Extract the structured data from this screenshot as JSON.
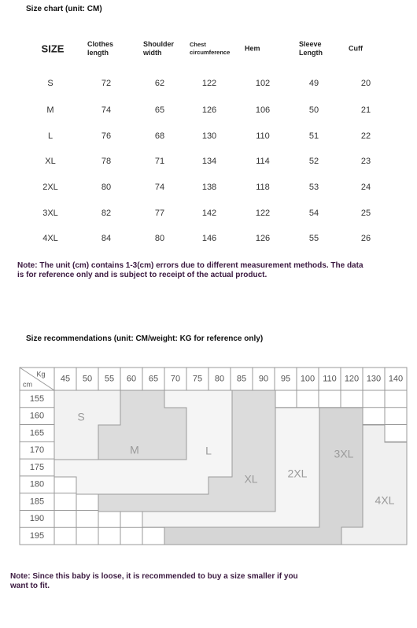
{
  "header": {
    "title": "Size chart (unit: CM)"
  },
  "size_table": {
    "columns": [
      "SIZE",
      "Clothes length",
      "Shoulder width",
      "Chest circumference",
      "Hem",
      "Sleeve Length",
      "Cuff"
    ],
    "rows": [
      [
        "S",
        72,
        62,
        122,
        102,
        49,
        20
      ],
      [
        "M",
        74,
        65,
        126,
        106,
        50,
        21
      ],
      [
        "L",
        76,
        68,
        130,
        110,
        51,
        22
      ],
      [
        "XL",
        78,
        71,
        134,
        114,
        52,
        23
      ],
      [
        "2XL",
        80,
        74,
        138,
        118,
        53,
        24
      ],
      [
        "3XL",
        82,
        77,
        142,
        122,
        54,
        25
      ],
      [
        "4XL",
        84,
        80,
        146,
        126,
        55,
        26
      ]
    ]
  },
  "note": "Note: The unit (cm) contains 1-3(cm) errors due to different measurement methods. The data is for reference only and is subject to receipt of the actual product.",
  "recommendation": {
    "title": "Size recommendations (unit: CM/weight: KG for reference only)",
    "corner_weight": "Kg",
    "corner_height": "cm",
    "weights": [
      45,
      50,
      55,
      60,
      65,
      70,
      75,
      80,
      85,
      90,
      95,
      100,
      110,
      120,
      130,
      140
    ],
    "heights": [
      155,
      160,
      165,
      170,
      175,
      180,
      185,
      190,
      195
    ],
    "size_labels": [
      "S",
      "M",
      "L",
      "XL",
      "2XL",
      "3XL",
      "4XL"
    ]
  },
  "footnote": "Note: Since this baby is loose, it is recommended to buy a size smaller if you want to fit."
}
